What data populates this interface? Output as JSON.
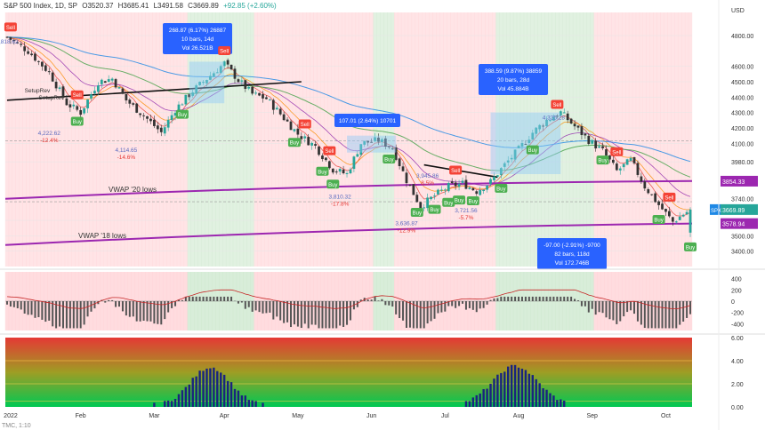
{
  "header": {
    "symbol": "S&P 500 Index, 1D, SP",
    "open": "O3520.37",
    "high": "H3685.41",
    "low": "L3491.58",
    "close": "C3669.89",
    "change": "+92.85 (+2.60%)"
  },
  "footer_text": "TMC, 1:10",
  "colors": {
    "up": "#26a69a",
    "down": "#ef5350",
    "vwap": "#9c27b0",
    "trend": "#111111",
    "buy": "#4caf50",
    "sell": "#f44336",
    "measure": "#2962ff",
    "bg_green": "#c8e6c9",
    "bg_red": "#ffcdd2"
  },
  "chart_data": {
    "type": "candlestick",
    "symbol": "SPX",
    "timeframe": "1D",
    "x_labels": [
      "2022",
      "Feb",
      "Mar",
      "Apr",
      "May",
      "Jun",
      "Jul",
      "Aug",
      "Sep",
      "Oct"
    ],
    "ylim": [
      3300,
      4950
    ],
    "y_ticks": [
      3400,
      3500,
      3600,
      3740,
      3980,
      4100,
      4200,
      4300,
      4400,
      4500,
      4600,
      4800
    ],
    "y_tick_labels": [
      "3400.00",
      "3500.00",
      "3600.00",
      "3740.00",
      "3980.00",
      "4100.00",
      "4200.00",
      "4300.00",
      "4400.00",
      "4500.00",
      "4600.00",
      "4800.00"
    ],
    "axis_unit": "USD",
    "price_path": [
      [
        0,
        4790
      ],
      [
        6,
        4700
      ],
      [
        12,
        4560
      ],
      [
        17,
        4360
      ],
      [
        21,
        4300
      ],
      [
        26,
        4500
      ],
      [
        30,
        4520
      ],
      [
        34,
        4380
      ],
      [
        39,
        4280
      ],
      [
        44,
        4170
      ],
      [
        48,
        4320
      ],
      [
        53,
        4440
      ],
      [
        58,
        4540
      ],
      [
        62,
        4620
      ],
      [
        66,
        4510
      ],
      [
        70,
        4420
      ],
      [
        74,
        4390
      ],
      [
        78,
        4290
      ],
      [
        83,
        4160
      ],
      [
        88,
        4080
      ],
      [
        93,
        3930
      ],
      [
        97,
        3900
      ],
      [
        101,
        4100
      ],
      [
        106,
        4120
      ],
      [
        110,
        4070
      ],
      [
        114,
        3860
      ],
      [
        118,
        3690
      ],
      [
        122,
        3760
      ],
      [
        126,
        3820
      ],
      [
        130,
        3840
      ],
      [
        134,
        3790
      ],
      [
        138,
        3850
      ],
      [
        142,
        3960
      ],
      [
        146,
        4060
      ],
      [
        150,
        4170
      ],
      [
        154,
        4250
      ],
      [
        158,
        4300
      ],
      [
        162,
        4210
      ],
      [
        166,
        4120
      ],
      [
        170,
        4050
      ],
      [
        174,
        3920
      ],
      [
        178,
        3990
      ],
      [
        182,
        3820
      ],
      [
        186,
        3700
      ],
      [
        190,
        3590
      ],
      [
        193,
        3640
      ],
      [
        195,
        3669.89
      ]
    ],
    "current_price": 3669.89,
    "current_price_label": "3669.89",
    "ticker_badge": "SPX",
    "vwap_levels": [
      {
        "label": "3854.33",
        "value": 3854.33
      },
      {
        "label": "3578.94",
        "value": 3578.94
      }
    ],
    "vwap_lines": [
      {
        "name": "VWAP '20 lows",
        "start": 3740,
        "end": 3855
      },
      {
        "name": "VWAP '18 lows",
        "start": 3440,
        "end": 3579
      }
    ],
    "dashed_levels": [
      3721,
      4115
    ],
    "price_labels": [
      {
        "text": "4,222.62",
        "sub": "-12.4%",
        "bar": 12,
        "value": 4222.62
      },
      {
        "text": "4,114.65",
        "sub": "-14.6%",
        "bar": 34,
        "value": 4114.65
      },
      {
        "text": "3,810.32",
        "sub": "-17.8%",
        "bar": 95,
        "value": 3810.32
      },
      {
        "text": "3,636.87",
        "sub": "-12.9%",
        "bar": 114,
        "value": 3636.87
      },
      {
        "text": "3,945.86",
        "sub": "8.5%",
        "bar": 120,
        "value": 3945.86
      },
      {
        "text": "3,721.56",
        "sub": "-5.7%",
        "bar": 131,
        "value": 3721.56
      },
      {
        "text": "4,325.28",
        "sub": "",
        "bar": 156,
        "value": 4325.28
      },
      {
        "text": "4,818.62",
        "sub": "",
        "bar": 0,
        "value": 4818.62
      }
    ],
    "measurements": [
      {
        "line1": "268.87 (6.17%) 26887",
        "line2": "10 bars, 14d",
        "line3": "Vol 26.521B",
        "from_bar": 52,
        "to_bar": 62,
        "from_v": 4360,
        "to_v": 4630
      },
      {
        "line1": "107.01 (2.64%) 10701",
        "line2": "",
        "line3": "",
        "from_bar": 97,
        "to_bar": 111,
        "from_v": 4040,
        "to_v": 4150
      },
      {
        "line1": "388.59 (9.87%) 38859",
        "line2": "20 bars, 28d",
        "line3": "Vol 45.884B",
        "from_bar": 138,
        "to_bar": 158,
        "from_v": 3900,
        "to_v": 4300
      },
      {
        "line1": "-97.00 (-2.91%) -9700",
        "line2": "82 bars, 118d",
        "line3": "Vol 172.746B",
        "from_bar": 0,
        "to_bar": 0,
        "from_v": 0,
        "to_v": 0
      }
    ],
    "signals": [
      {
        "type": "Sell",
        "bar": 1
      },
      {
        "type": "Sell",
        "bar": 20
      },
      {
        "type": "Buy",
        "bar": 20
      },
      {
        "type": "Buy",
        "bar": 50
      },
      {
        "type": "Sell",
        "bar": 62
      },
      {
        "type": "Sell",
        "bar": 85
      },
      {
        "type": "Buy",
        "bar": 82
      },
      {
        "type": "Sell",
        "bar": 92
      },
      {
        "type": "Buy",
        "bar": 90
      },
      {
        "type": "Buy",
        "bar": 93
      },
      {
        "type": "Buy",
        "bar": 109
      },
      {
        "type": "Buy",
        "bar": 117
      },
      {
        "type": "Buy",
        "bar": 122
      },
      {
        "type": "Buy",
        "bar": 126
      },
      {
        "type": "Buy",
        "bar": 129
      },
      {
        "type": "Buy",
        "bar": 133
      },
      {
        "type": "Sell",
        "bar": 128
      },
      {
        "type": "Buy",
        "bar": 141
      },
      {
        "type": "Buy",
        "bar": 150
      },
      {
        "type": "Sell",
        "bar": 157
      },
      {
        "type": "Buy",
        "bar": 170
      },
      {
        "type": "Sell",
        "bar": 174
      },
      {
        "type": "Sell",
        "bar": 189
      },
      {
        "type": "Buy",
        "bar": 186
      },
      {
        "type": "Buy",
        "bar": 195
      }
    ],
    "setup_labels": [
      {
        "text": "SetupRev",
        "bar": 5
      },
      {
        "text": "SetupRev",
        "bar": 9
      }
    ],
    "osc_ticks": [
      "400",
      "200",
      "0",
      "-200",
      "-400"
    ],
    "osc_ylim": [
      -520,
      520
    ],
    "osc2_ticks": [
      "6.00",
      "4.00",
      "2.00",
      "0.00"
    ],
    "osc2_ylim": [
      0,
      6
    ]
  }
}
